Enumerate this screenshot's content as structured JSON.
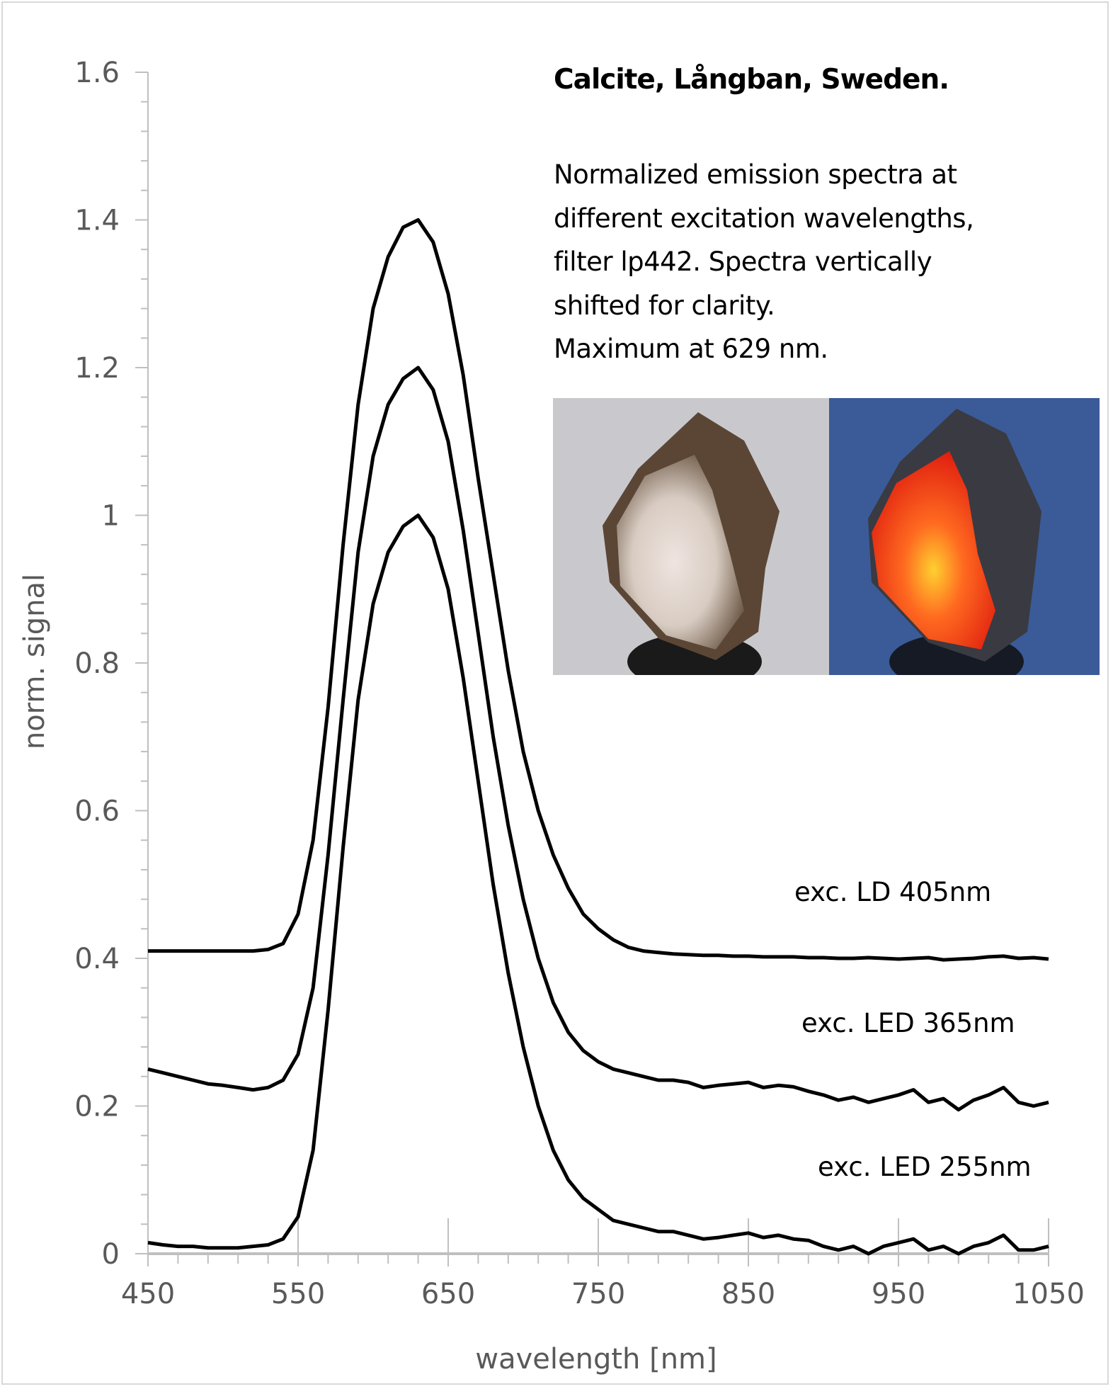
{
  "chart_data": {
    "type": "line",
    "title": "Calcite, Långban, Sweden.",
    "description_lines": [
      "Normalized emission spectra at",
      "different excitation wavelengths,",
      "filter lp442. Spectra vertically",
      "shifted for clarity.",
      "Maximum at  629 nm."
    ],
    "xlabel": "wavelength [nm]",
    "ylabel": "norm. signal",
    "xlim": [
      450,
      1050
    ],
    "ylim": [
      0,
      1.6
    ],
    "x_ticks": [
      "450",
      "550",
      "650",
      "750",
      "850",
      "950",
      "1050"
    ],
    "y_ticks": [
      "0",
      "0.2",
      "0.4",
      "0.6",
      "0.8",
      "1",
      "1.2",
      "1.4",
      "1.6"
    ],
    "grid": false,
    "line_color": "#000000",
    "axis_color": "#bfbfbf",
    "x": [
      450,
      460,
      470,
      480,
      490,
      500,
      510,
      520,
      530,
      540,
      550,
      560,
      570,
      580,
      590,
      600,
      610,
      620,
      630,
      640,
      650,
      660,
      670,
      680,
      690,
      700,
      710,
      720,
      730,
      740,
      750,
      760,
      770,
      780,
      790,
      800,
      810,
      820,
      830,
      840,
      850,
      860,
      870,
      880,
      890,
      900,
      910,
      920,
      930,
      940,
      950,
      960,
      970,
      980,
      990,
      1000,
      1010,
      1020,
      1030,
      1040,
      1050
    ],
    "series": [
      {
        "name": "exc. LD 405nm",
        "values": [
          0.41,
          0.41,
          0.41,
          0.41,
          0.41,
          0.41,
          0.41,
          0.41,
          0.412,
          0.42,
          0.46,
          0.56,
          0.74,
          0.96,
          1.15,
          1.28,
          1.35,
          1.39,
          1.4,
          1.37,
          1.3,
          1.19,
          1.05,
          0.92,
          0.79,
          0.68,
          0.6,
          0.54,
          0.495,
          0.46,
          0.44,
          0.425,
          0.415,
          0.41,
          0.408,
          0.406,
          0.405,
          0.404,
          0.404,
          0.403,
          0.403,
          0.402,
          0.402,
          0.402,
          0.401,
          0.401,
          0.4,
          0.4,
          0.401,
          0.4,
          0.399,
          0.4,
          0.401,
          0.398,
          0.399,
          0.4,
          0.402,
          0.403,
          0.4,
          0.401,
          0.399
        ]
      },
      {
        "name": "exc. LED 365nm",
        "values": [
          0.25,
          0.245,
          0.24,
          0.235,
          0.23,
          0.228,
          0.225,
          0.222,
          0.225,
          0.235,
          0.27,
          0.36,
          0.54,
          0.75,
          0.95,
          1.08,
          1.15,
          1.185,
          1.2,
          1.17,
          1.1,
          0.98,
          0.84,
          0.7,
          0.58,
          0.48,
          0.4,
          0.34,
          0.3,
          0.275,
          0.26,
          0.25,
          0.245,
          0.24,
          0.235,
          0.235,
          0.232,
          0.225,
          0.228,
          0.23,
          0.232,
          0.225,
          0.228,
          0.226,
          0.22,
          0.215,
          0.208,
          0.212,
          0.205,
          0.21,
          0.215,
          0.222,
          0.205,
          0.21,
          0.195,
          0.208,
          0.215,
          0.225,
          0.205,
          0.2,
          0.205
        ]
      },
      {
        "name": "exc. LED 255nm",
        "values": [
          0.015,
          0.012,
          0.01,
          0.01,
          0.008,
          0.008,
          0.008,
          0.01,
          0.012,
          0.02,
          0.05,
          0.14,
          0.33,
          0.55,
          0.75,
          0.88,
          0.95,
          0.985,
          1.0,
          0.97,
          0.9,
          0.78,
          0.64,
          0.5,
          0.38,
          0.28,
          0.2,
          0.14,
          0.1,
          0.075,
          0.06,
          0.045,
          0.04,
          0.035,
          0.03,
          0.03,
          0.025,
          0.02,
          0.022,
          0.025,
          0.028,
          0.022,
          0.025,
          0.02,
          0.018,
          0.01,
          0.005,
          0.01,
          0.0,
          0.01,
          0.015,
          0.02,
          0.005,
          0.01,
          0.0,
          0.01,
          0.015,
          0.025,
          0.005,
          0.005,
          0.01
        ]
      }
    ]
  },
  "photos": {
    "daylight_background": "#c9c9cd",
    "uv_background": "#3b5b98",
    "fluorescence_color": "#ff3a1a"
  }
}
